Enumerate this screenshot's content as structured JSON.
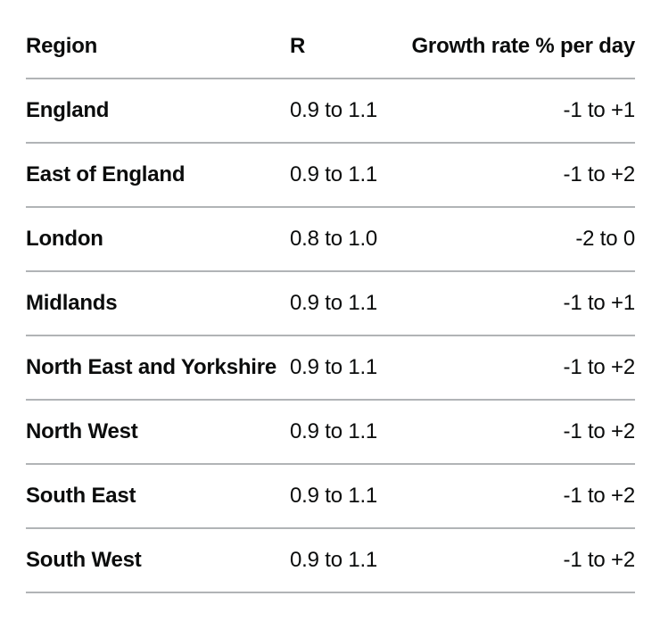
{
  "chart_data": {
    "type": "table",
    "columns": [
      "Region",
      "R",
      "Growth rate % per day"
    ],
    "rows": [
      [
        "England",
        "0.9 to 1.1",
        "-1 to +1"
      ],
      [
        "East of England",
        "0.9 to 1.1",
        "-1 to +2"
      ],
      [
        "London",
        "0.8 to 1.0",
        "-2 to 0"
      ],
      [
        "Midlands",
        "0.9 to 1.1",
        "-1 to +1"
      ],
      [
        "North East and Yorkshire",
        "0.9 to 1.1",
        "-1 to +2"
      ],
      [
        "North West",
        "0.9 to 1.1",
        "-1 to +2"
      ],
      [
        "South East",
        "0.9 to 1.1",
        "-1 to +2"
      ],
      [
        "South West",
        "0.9 to 1.1",
        "-1 to +2"
      ]
    ]
  },
  "colors": {
    "text": "#0b0c0c",
    "row_divider": "#b1b4b6",
    "background": "#ffffff"
  }
}
